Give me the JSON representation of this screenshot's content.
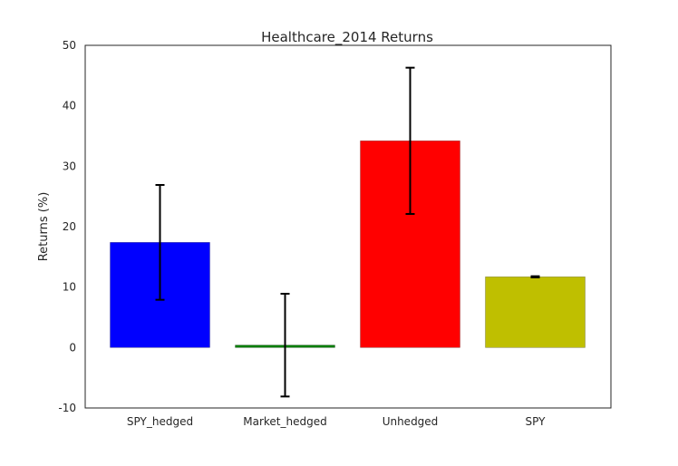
{
  "chart_data": {
    "type": "bar",
    "title": "Healthcare_2014 Returns",
    "xlabel": "",
    "ylabel": "Returns (%)",
    "ylim": [
      -10,
      50
    ],
    "yticks": [
      "-10",
      "0",
      "10",
      "20",
      "30",
      "40",
      "50"
    ],
    "grid": false,
    "categories": [
      "SPY_hedged",
      "Market_hedged",
      "Unhedged",
      "SPY"
    ],
    "values": [
      17.4,
      0.4,
      34.2,
      11.7
    ],
    "error": [
      9.5,
      8.5,
      12.1,
      0.1
    ],
    "colors": [
      "#0000ff",
      "#007f00",
      "#ff0000",
      "#bfbf00"
    ]
  }
}
